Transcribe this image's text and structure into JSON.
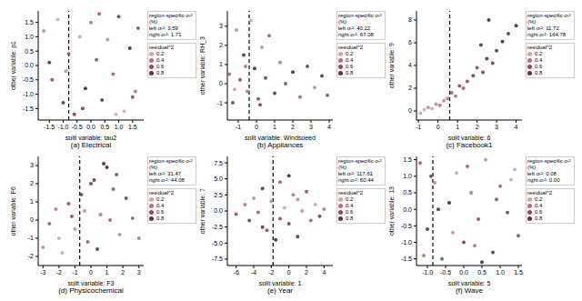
{
  "chart_data": [
    {
      "type": "scatter",
      "title": "(a) Electrical",
      "x_label": "split variable: tau2",
      "y_label": "other variable: p1",
      "xlim": [
        -1.9,
        1.9
      ],
      "ylim": [
        -1.9,
        1.9
      ],
      "xticks": [
        -1.5,
        {
          "value": -1,
          "label": "-1.0"
        },
        -0.5,
        {
          "value": 0,
          "label": "0.0"
        },
        0.5,
        {
          "value": 1,
          "label": "1.0"
        },
        1.5
      ],
      "yticks": [
        -1.5,
        {
          "value": -1,
          "label": "-1.0"
        },
        -0.5,
        {
          "value": 0,
          "label": "0.0"
        },
        0.5,
        {
          "value": 1,
          "label": "1.0"
        },
        1.5
      ],
      "x": [
        -1.7,
        -1.4,
        -1.2,
        -1.0,
        -0.8,
        -0.6,
        -0.4,
        -0.2,
        0.0,
        0.2,
        0.4,
        0.6,
        0.8,
        1.0,
        1.2,
        1.4,
        1.6,
        1.7,
        -1.5,
        -0.9,
        -0.3,
        0.3,
        0.9,
        1.5
      ],
      "y": [
        1.2,
        -0.5,
        1.6,
        -1.3,
        0.4,
        -1.7,
        1.0,
        -0.8,
        1.5,
        0.2,
        -1.2,
        0.9,
        -0.3,
        1.7,
        -1.6,
        0.6,
        -0.9,
        1.3,
        0.1,
        -0.2,
        -1.5,
        1.8,
        -1.7,
        -1.1
      ],
      "residual": [
        0.3,
        0.6,
        0.2,
        0.8,
        0.5,
        0.7,
        0.2,
        0.9,
        0.4,
        0.6,
        0.8,
        0.3,
        0.5,
        0.7,
        0.2,
        0.9,
        0.4,
        0.6,
        0.8,
        0.3,
        0.7,
        0.5,
        0.2,
        0.6
      ],
      "split": -0.8,
      "legend_title": "region-specific σᵣ² (%)",
      "annotations": [
        "left σᵣ²: 3.59",
        "right σᵣ²: 1.71"
      ],
      "residual_legend_title": "residual^2",
      "residual_ticks": [
        0.2,
        0.4,
        0.6,
        0.8
      ]
    },
    {
      "type": "scatter",
      "title": "(b) Appliances",
      "x_label": "split variable: Windspeed",
      "y_label": "other variable: RH_3",
      "xlim": [
        -1.6,
        4.2
      ],
      "ylim": [
        -1.9,
        3.8
      ],
      "xticks": [
        -1,
        0,
        1,
        2,
        3,
        4
      ],
      "yticks": [
        -1,
        0,
        1,
        2,
        3
      ],
      "x": [
        -1.5,
        -1.3,
        -1.1,
        -0.9,
        -0.7,
        -0.5,
        -0.3,
        -0.1,
        0.1,
        0.3,
        0.5,
        0.7,
        1.0,
        1.3,
        1.6,
        2.0,
        2.4,
        2.8,
        3.2,
        3.6,
        3.9,
        -1.2,
        -0.6,
        0.2
      ],
      "y": [
        0.5,
        -1.0,
        2.8,
        0.2,
        1.5,
        -0.4,
        3.3,
        0.8,
        -0.8,
        1.9,
        0.3,
        2.5,
        -0.5,
        1.1,
        0.0,
        0.6,
        -0.7,
        0.9,
        -0.2,
        0.4,
        -0.6,
        -0.3,
        0.9,
        -1.1
      ],
      "residual": [
        0.5,
        0.7,
        0.3,
        0.6,
        0.8,
        0.4,
        0.2,
        0.9,
        0.6,
        0.3,
        0.7,
        0.5,
        0.8,
        0.4,
        0.6,
        0.9,
        0.5,
        0.7,
        0.3,
        0.8,
        0.6,
        0.2,
        0.4,
        0.7
      ],
      "split": -0.4,
      "legend_title": "region-specific σᵣ² (%)",
      "annotations": [
        "left σᵣ²: 40.22",
        "right σᵣ²: 67.08"
      ],
      "residual_legend_title": "residual^2",
      "residual_ticks": [
        0.2,
        0.4,
        0.6,
        0.8
      ]
    },
    {
      "type": "scatter",
      "title": "(c) Facebook1",
      "x_label": "split variable: 6",
      "y_label": "other variable: 9",
      "xlim": [
        -1.1,
        4.3
      ],
      "ylim": [
        -0.8,
        8.8
      ],
      "xticks": [
        -1,
        0,
        1,
        2,
        3,
        4
      ],
      "yticks": [
        0,
        2,
        4,
        6,
        8
      ],
      "x": [
        -0.9,
        -0.7,
        -0.5,
        -0.3,
        -0.1,
        0.1,
        0.3,
        0.5,
        0.7,
        0.9,
        1.1,
        1.3,
        1.5,
        1.8,
        2.0,
        2.3,
        2.5,
        2.8,
        3.0,
        3.3,
        3.6,
        4.0,
        2.6,
        2.2
      ],
      "y": [
        -0.2,
        0.1,
        0.3,
        0.2,
        0.6,
        0.5,
        0.9,
        1.1,
        1.6,
        1.3,
        2.2,
        2.0,
        2.6,
        3.1,
        3.8,
        3.4,
        4.6,
        4.2,
        5.3,
        6.1,
        6.8,
        7.5,
        8.0,
        5.8
      ],
      "residual": [
        0.2,
        0.2,
        0.3,
        0.2,
        0.3,
        0.4,
        0.3,
        0.4,
        0.5,
        0.4,
        0.6,
        0.5,
        0.6,
        0.7,
        0.6,
        0.7,
        0.8,
        0.7,
        0.8,
        0.9,
        0.8,
        0.9,
        0.9,
        0.8
      ],
      "split": 0.6,
      "legend_title": "region-specific σᵣ² (%)",
      "annotations": [
        "left σᵣ²: 11.72",
        "right σᵣ²: 164.78"
      ],
      "residual_legend_title": "residual^2",
      "residual_ticks": [
        0.2,
        0.4,
        0.6,
        0.8
      ]
    },
    {
      "type": "scatter",
      "title": "(d) Physicochemical",
      "x_label": "split variable: F3",
      "y_label": "other variable: F6",
      "xlim": [
        -3.3,
        3.3
      ],
      "ylim": [
        -2.5,
        3.5
      ],
      "xticks": [
        -3,
        -2,
        -1,
        0,
        1,
        2,
        3
      ],
      "yticks": [
        -2,
        -1,
        0,
        1,
        2,
        3
      ],
      "x": [
        -3.0,
        -2.6,
        -2.2,
        -1.8,
        -1.4,
        -1.0,
        -0.6,
        -0.2,
        0.2,
        0.6,
        1.0,
        1.4,
        1.8,
        2.2,
        2.6,
        3.0,
        -2.0,
        -1.2,
        -0.4,
        0.4,
        1.2,
        0.8,
        0.0,
        1.6
      ],
      "y": [
        -1.5,
        -0.2,
        0.6,
        -1.8,
        0.9,
        -0.5,
        1.4,
        -1.2,
        2.2,
        0.3,
        2.9,
        1.7,
        -0.8,
        1.2,
        0.1,
        -1.0,
        -1.0,
        0.2,
        0.5,
        -1.6,
        0.0,
        3.1,
        2.0,
        2.5
      ],
      "residual": [
        0.3,
        0.5,
        0.4,
        0.2,
        0.6,
        0.3,
        0.7,
        0.5,
        0.8,
        0.4,
        0.9,
        0.6,
        0.3,
        0.7,
        0.5,
        0.4,
        0.2,
        0.6,
        0.3,
        0.8,
        0.5,
        0.9,
        0.7,
        0.6
      ],
      "split": -0.7,
      "legend_title": "region-specific σᵣ² (%)",
      "annotations": [
        "left σᵣ²: 31.47",
        "right σᵣ²: 44.08"
      ],
      "residual_legend_title": "residual^2",
      "residual_ticks": [
        0.2,
        0.4,
        0.6,
        0.8
      ]
    },
    {
      "type": "scatter",
      "title": "(e) Year",
      "x_label": "split variable: 1",
      "y_label": "other variable: 7",
      "xlim": [
        -7,
        5
      ],
      "ylim": [
        -8.5,
        8.5
      ],
      "xticks": [
        -6,
        -4,
        -2,
        0,
        2,
        4
      ],
      "yticks": [
        -7.5,
        {
          "value": -5,
          "label": "-5.0"
        },
        -2.5,
        {
          "value": 0,
          "label": "0.0"
        },
        2.5,
        {
          "value": 5,
          "label": "5.0"
        },
        7.5
      ],
      "x": [
        -6.0,
        -5.0,
        -4.5,
        -4.0,
        -3.5,
        -3.0,
        -2.5,
        -2.0,
        -1.5,
        -1.0,
        -0.5,
        0.0,
        0.5,
        1.0,
        1.5,
        2.0,
        2.5,
        3.0,
        3.5,
        4.0,
        -3.0,
        -1.0,
        1.0,
        0.0
      ],
      "y": [
        -0.5,
        1.0,
        -1.5,
        2.0,
        -0.2,
        3.5,
        -3.0,
        1.5,
        -4.5,
        4.5,
        0.5,
        -2.0,
        2.5,
        -4.0,
        0.0,
        3.0,
        -1.5,
        1.0,
        -0.8,
        0.3,
        -2.5,
        -1.2,
        1.8,
        5.5
      ],
      "residual": [
        0.6,
        0.4,
        0.7,
        0.3,
        0.5,
        0.8,
        0.6,
        0.3,
        0.9,
        0.5,
        0.2,
        0.7,
        0.4,
        0.8,
        0.3,
        0.6,
        0.5,
        0.2,
        0.7,
        0.4,
        0.8,
        0.6,
        0.3,
        0.9
      ],
      "split": -1.8,
      "legend_title": "region-specific σᵣ² (%)",
      "annotations": [
        "left σᵣ²: 117.61",
        "right σᵣ²: 60.44"
      ],
      "residual_legend_title": "residual^2",
      "residual_ticks": [
        0.2,
        0.4,
        0.6,
        0.8
      ]
    },
    {
      "type": "scatter",
      "title": "(f) Wave",
      "x_label": "split variable: 5",
      "y_label": "other variable: 13",
      "xlim": [
        -1.3,
        1.6
      ],
      "ylim": [
        -1.7,
        1.6
      ],
      "xticks": [
        {
          "value": -1,
          "label": "-1.0"
        },
        -0.5,
        {
          "value": 0,
          "label": "0.0"
        },
        0.5,
        {
          "value": 1,
          "label": "1.0"
        },
        1.5
      ],
      "yticks": [
        -1.5,
        {
          "value": -1,
          "label": "-1.0"
        },
        -0.5,
        {
          "value": 0,
          "label": "0.0"
        },
        0.5,
        {
          "value": 1,
          "label": "1.0"
        },
        1.5
      ],
      "x": [
        -1.2,
        -1.0,
        -0.8,
        -0.6,
        -0.4,
        -0.2,
        0.0,
        0.2,
        0.4,
        0.6,
        0.8,
        1.0,
        1.2,
        1.4,
        1.5,
        -1.1,
        -0.7,
        -0.3,
        0.1,
        0.5,
        0.9,
        1.3,
        -0.9,
        0.3
      ],
      "y": [
        1.4,
        -0.6,
        0.8,
        -1.5,
        0.2,
        1.1,
        -1.0,
        0.5,
        -0.3,
        1.5,
        -1.3,
        0.7,
        -0.1,
        1.2,
        -0.8,
        -1.4,
        0.0,
        -0.7,
        1.3,
        -1.6,
        0.3,
        0.9,
        1.0,
        -1.1
      ],
      "residual": [
        0.5,
        0.8,
        0.3,
        0.6,
        0.9,
        0.2,
        0.7,
        0.4,
        0.6,
        0.3,
        0.8,
        0.5,
        0.7,
        0.2,
        0.6,
        0.4,
        0.8,
        0.3,
        0.5,
        0.9,
        0.6,
        0.2,
        0.7,
        0.4
      ],
      "split": -0.85,
      "legend_title": "region-specific σᵣ² (%)",
      "annotations": [
        "left σᵣ²: 0.08",
        "right σᵣ²: 0.00"
      ],
      "residual_legend_title": "residual^2",
      "residual_ticks": [
        0.2,
        0.4,
        0.6,
        0.8
      ]
    }
  ]
}
